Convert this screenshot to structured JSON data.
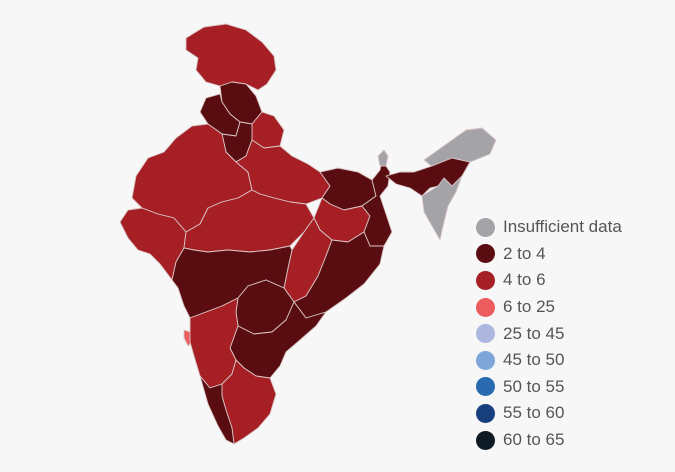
{
  "colors": {
    "background": "#f7f7f7",
    "border": "#d9c6c6"
  },
  "legend": {
    "items": [
      {
        "label": "Insufficient data",
        "color": "#a3a3a8"
      },
      {
        "label": "2 to 4",
        "color": "#5a0d11"
      },
      {
        "label": "4 to 6",
        "color": "#a51f24"
      },
      {
        "label": "6 to 25",
        "color": "#ec5c5f"
      },
      {
        "label": "25 to 45",
        "color": "#adb6df"
      },
      {
        "label": "45 to 50",
        "color": "#7ea6d9"
      },
      {
        "label": "50 to 55",
        "color": "#2a6ab0"
      },
      {
        "label": "55 to 60",
        "color": "#183f7d"
      },
      {
        "label": "60 to 65",
        "color": "#0e1a24"
      }
    ]
  },
  "map": {
    "regions": [
      {
        "name": "jammu-kashmir",
        "category": "4 to 6"
      },
      {
        "name": "himachal-pradesh",
        "category": "2 to 4"
      },
      {
        "name": "punjab",
        "category": "2 to 4"
      },
      {
        "name": "uttarakhand",
        "category": "4 to 6"
      },
      {
        "name": "haryana",
        "category": "2 to 4"
      },
      {
        "name": "rajasthan",
        "category": "4 to 6"
      },
      {
        "name": "uttar-pradesh",
        "category": "4 to 6"
      },
      {
        "name": "bihar",
        "category": "2 to 4"
      },
      {
        "name": "gujarat",
        "category": "4 to 6"
      },
      {
        "name": "madhya-pradesh",
        "category": "4 to 6"
      },
      {
        "name": "jharkhand",
        "category": "4 to 6"
      },
      {
        "name": "west-bengal",
        "category": "2 to 4"
      },
      {
        "name": "chhattisgarh",
        "category": "4 to 6"
      },
      {
        "name": "odisha",
        "category": "2 to 4"
      },
      {
        "name": "maharashtra",
        "category": "2 to 4"
      },
      {
        "name": "telangana",
        "category": "2 to 4"
      },
      {
        "name": "andhra-pradesh",
        "category": "2 to 4"
      },
      {
        "name": "goa",
        "category": "6 to 25"
      },
      {
        "name": "karnataka",
        "category": "4 to 6"
      },
      {
        "name": "tamil-nadu",
        "category": "4 to 6"
      },
      {
        "name": "kerala",
        "category": "2 to 4"
      },
      {
        "name": "assam",
        "category": "2 to 4"
      },
      {
        "name": "northeast-states",
        "category": "Insufficient data"
      },
      {
        "name": "sikkim",
        "category": "Insufficient data"
      }
    ]
  }
}
